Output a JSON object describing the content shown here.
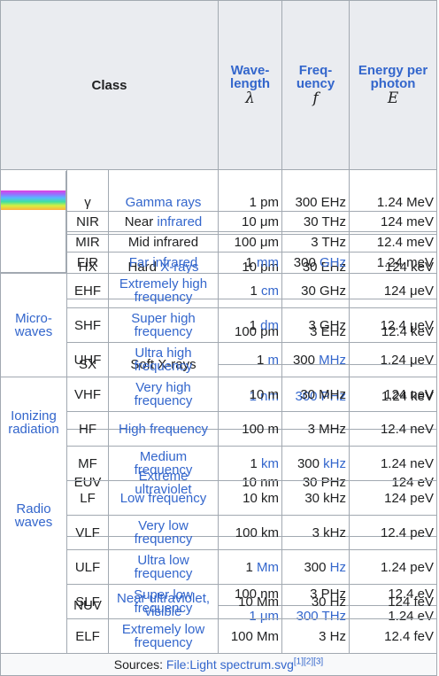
{
  "header": {
    "class": "Class",
    "wavelength_label": "Wave-length",
    "wavelength_symbol": "λ",
    "frequency_label": "Freq-uency",
    "frequency_symbol": "f",
    "energy_label": "Energy per photon",
    "energy_symbol": "E"
  },
  "groups": {
    "ionizing": "Ionizing radiation",
    "micro": "Micro-waves",
    "radio": "Radio waves"
  },
  "colors": {
    "link": "#3366cc",
    "header_bg": "#eaecf0",
    "border": "#a2a9b1",
    "text": "#202122"
  },
  "rows": {
    "gamma": {
      "abbr": "γ",
      "name": "Gamma rays",
      "wl": "1 pm",
      "freq": "300 EHz",
      "energy": "1.24 MeV"
    },
    "hx": {
      "abbr": "HX",
      "name_a": "Hard ",
      "name_b": "X-rays",
      "wl": "10 pm",
      "freq": "30 EHz",
      "energy": "124 keV"
    },
    "sx": {
      "abbr": "SX",
      "name": "Soft X-rays",
      "wl1": "100 pm",
      "freq1": "3 EHz",
      "energy1": "12.4 keV",
      "wl2": "1 nm",
      "freq2": "300 PHz",
      "energy2": "1.24 keV"
    },
    "euv": {
      "abbr": "EUV",
      "name": "Extreme ultraviolet",
      "wl": "10 nm",
      "freq": "30 PHz",
      "energy": "124 eV"
    },
    "nuv": {
      "abbr": "NUV",
      "name": "Near ultraviolet, visible",
      "wl1": "100 nm",
      "freq1": "3 PHz",
      "energy1": "12.4 eV",
      "wl2": "1 μm",
      "freq2": "300 THz",
      "energy2": "1.24 eV"
    },
    "nir": {
      "abbr": "NIR",
      "name_a": "Near ",
      "name_b": "infrared",
      "wl": "10 μm",
      "freq": "30 THz",
      "energy": "124 meV"
    },
    "mir": {
      "abbr": "MIR",
      "name": "Mid infrared",
      "wl": "100 μm",
      "freq": "3 THz",
      "energy": "12.4 meV"
    },
    "fir": {
      "abbr": "FIR",
      "name": "Far infrared",
      "wl": "1 mm",
      "freq": "300 GHz",
      "energy": "1.24 meV"
    },
    "ehf": {
      "abbr": "EHF",
      "name": "Extremely high frequency",
      "wl": "1 cm",
      "freq": "30 GHz",
      "energy": "124 μeV"
    },
    "shf": {
      "abbr": "SHF",
      "name": "Super high frequency",
      "wl": "1 dm",
      "freq": "3 GHz",
      "energy": "12.4 μeV"
    },
    "uhf": {
      "abbr": "UHF",
      "name": "Ultra high frequency",
      "wl": "1 m",
      "freq": "300 MHz",
      "energy": "1.24 μeV"
    },
    "vhf": {
      "abbr": "VHF",
      "name": "Very high frequency",
      "wl": "10 m",
      "freq": "30 MHz",
      "energy": "124 neV"
    },
    "hf": {
      "abbr": "HF",
      "name": "High frequency",
      "wl": "100 m",
      "freq": "3 MHz",
      "energy": "12.4 neV"
    },
    "mf": {
      "abbr": "MF",
      "name": "Medium frequency",
      "wl": "1 km",
      "freq": "300 kHz",
      "energy": "1.24 neV"
    },
    "lf": {
      "abbr": "LF",
      "name": "Low frequency",
      "wl": "10 km",
      "freq": "30 kHz",
      "energy": "124 peV"
    },
    "vlf": {
      "abbr": "VLF",
      "name": "Very low frequency",
      "wl": "100 km",
      "freq": "3 kHz",
      "energy": "12.4 peV"
    },
    "ulf": {
      "abbr": "ULF",
      "name": "Ultra low frequency",
      "wl": "1 Mm",
      "freq": "300 Hz",
      "energy": "1.24 peV"
    },
    "slf": {
      "abbr": "SLF",
      "name": "Super low frequency",
      "wl": "10 Mm",
      "freq": "30 Hz",
      "energy": "124 feV"
    },
    "elf": {
      "abbr": "ELF",
      "name": "Extremely low frequency",
      "wl": "100 Mm",
      "freq": "3 Hz",
      "energy": "12.4 feV"
    }
  },
  "footer": {
    "prefix": "Sources: ",
    "file": "File:Light spectrum.svg",
    "refs": "[1][2][3]"
  }
}
